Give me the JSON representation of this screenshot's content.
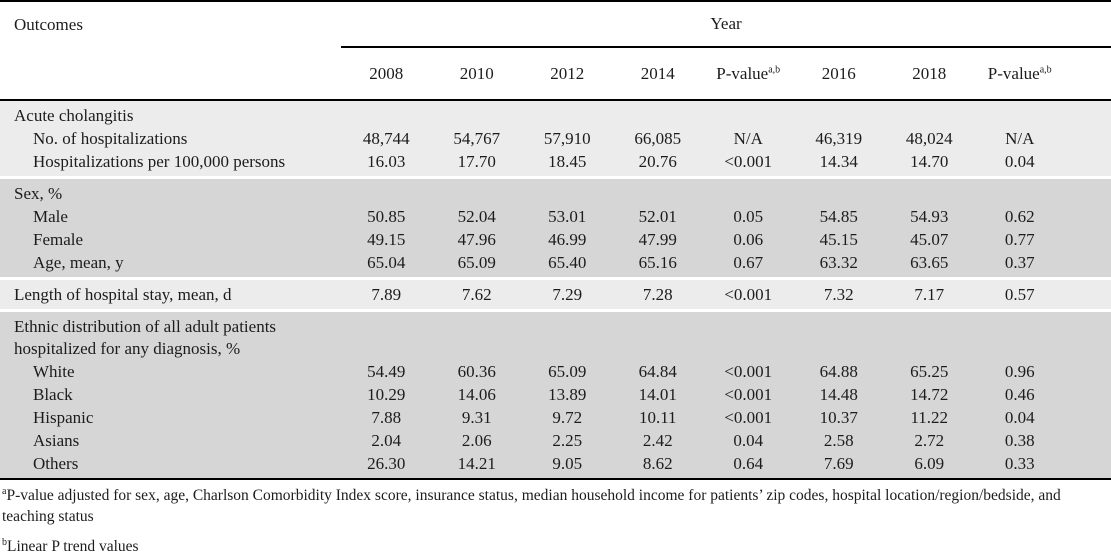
{
  "table": {
    "outcomes_header": "Outcomes",
    "year_header": "Year",
    "columns": [
      "2008",
      "2010",
      "2012",
      "2014",
      "P-value",
      "2016",
      "2018",
      "P-value"
    ],
    "pvalue_sup": "a,b",
    "colors": {
      "section_light": "#ececec",
      "section_dark": "#d6d6d6",
      "rule": "#000000"
    },
    "sections": [
      {
        "shade": "light",
        "title": "Acute cholangitis",
        "rows": [
          {
            "label": "No. of hospitalizations",
            "indent": true,
            "values": [
              "48,744",
              "54,767",
              "57,910",
              "66,085",
              "N/A",
              "46,319",
              "48,024",
              "N/A"
            ]
          },
          {
            "label": "Hospitalizations per 100,000 persons",
            "indent": true,
            "values": [
              "16.03",
              "17.70",
              "18.45",
              "20.76",
              "<0.001",
              "14.34",
              "14.70",
              "0.04"
            ]
          }
        ]
      },
      {
        "shade": "dark",
        "title": "Sex, %",
        "rows": [
          {
            "label": "Male",
            "indent": true,
            "values": [
              "50.85",
              "52.04",
              "53.01",
              "52.01",
              "0.05",
              "54.85",
              "54.93",
              "0.62"
            ]
          },
          {
            "label": "Female",
            "indent": true,
            "values": [
              "49.15",
              "47.96",
              "46.99",
              "47.99",
              "0.06",
              "45.15",
              "45.07",
              "0.77"
            ]
          },
          {
            "label": "Age, mean, y",
            "indent": true,
            "values": [
              "65.04",
              "65.09",
              "65.40",
              "65.16",
              "0.67",
              "63.32",
              "63.65",
              "0.37"
            ]
          }
        ]
      },
      {
        "shade": "light",
        "title": null,
        "rows": [
          {
            "label": "Length of hospital stay, mean, d",
            "indent": false,
            "values": [
              "7.89",
              "7.62",
              "7.29",
              "7.28",
              "<0.001",
              "7.32",
              "7.17",
              "0.57"
            ]
          }
        ]
      },
      {
        "shade": "dark",
        "title": "Ethnic distribution of all adult patients hospitalized for any diagnosis, %",
        "rows": [
          {
            "label": "White",
            "indent": true,
            "values": [
              "54.49",
              "60.36",
              "65.09",
              "64.84",
              "<0.001",
              "64.88",
              "65.25",
              "0.96"
            ]
          },
          {
            "label": "Black",
            "indent": true,
            "values": [
              "10.29",
              "14.06",
              "13.89",
              "14.01",
              "<0.001",
              "14.48",
              "14.72",
              "0.46"
            ]
          },
          {
            "label": "Hispanic",
            "indent": true,
            "values": [
              "7.88",
              "9.31",
              "9.72",
              "10.11",
              "<0.001",
              "10.37",
              "11.22",
              "0.04"
            ]
          },
          {
            "label": "Asians",
            "indent": true,
            "values": [
              "2.04",
              "2.06",
              "2.25",
              "2.42",
              "0.04",
              "2.58",
              "2.72",
              "0.38"
            ]
          },
          {
            "label": "Others",
            "indent": true,
            "values": [
              "26.30",
              "14.21",
              "9.05",
              "8.62",
              "0.64",
              "7.69",
              "6.09",
              "0.33"
            ]
          }
        ]
      }
    ],
    "footnotes": [
      {
        "marker": "a",
        "text": "P-value adjusted for sex, age, Charlson Comorbidity Index score, insurance status, median household income for patients’ zip codes, hospital location/region/bedside, and teaching status"
      },
      {
        "marker": "b",
        "text": "Linear P trend values"
      }
    ]
  }
}
